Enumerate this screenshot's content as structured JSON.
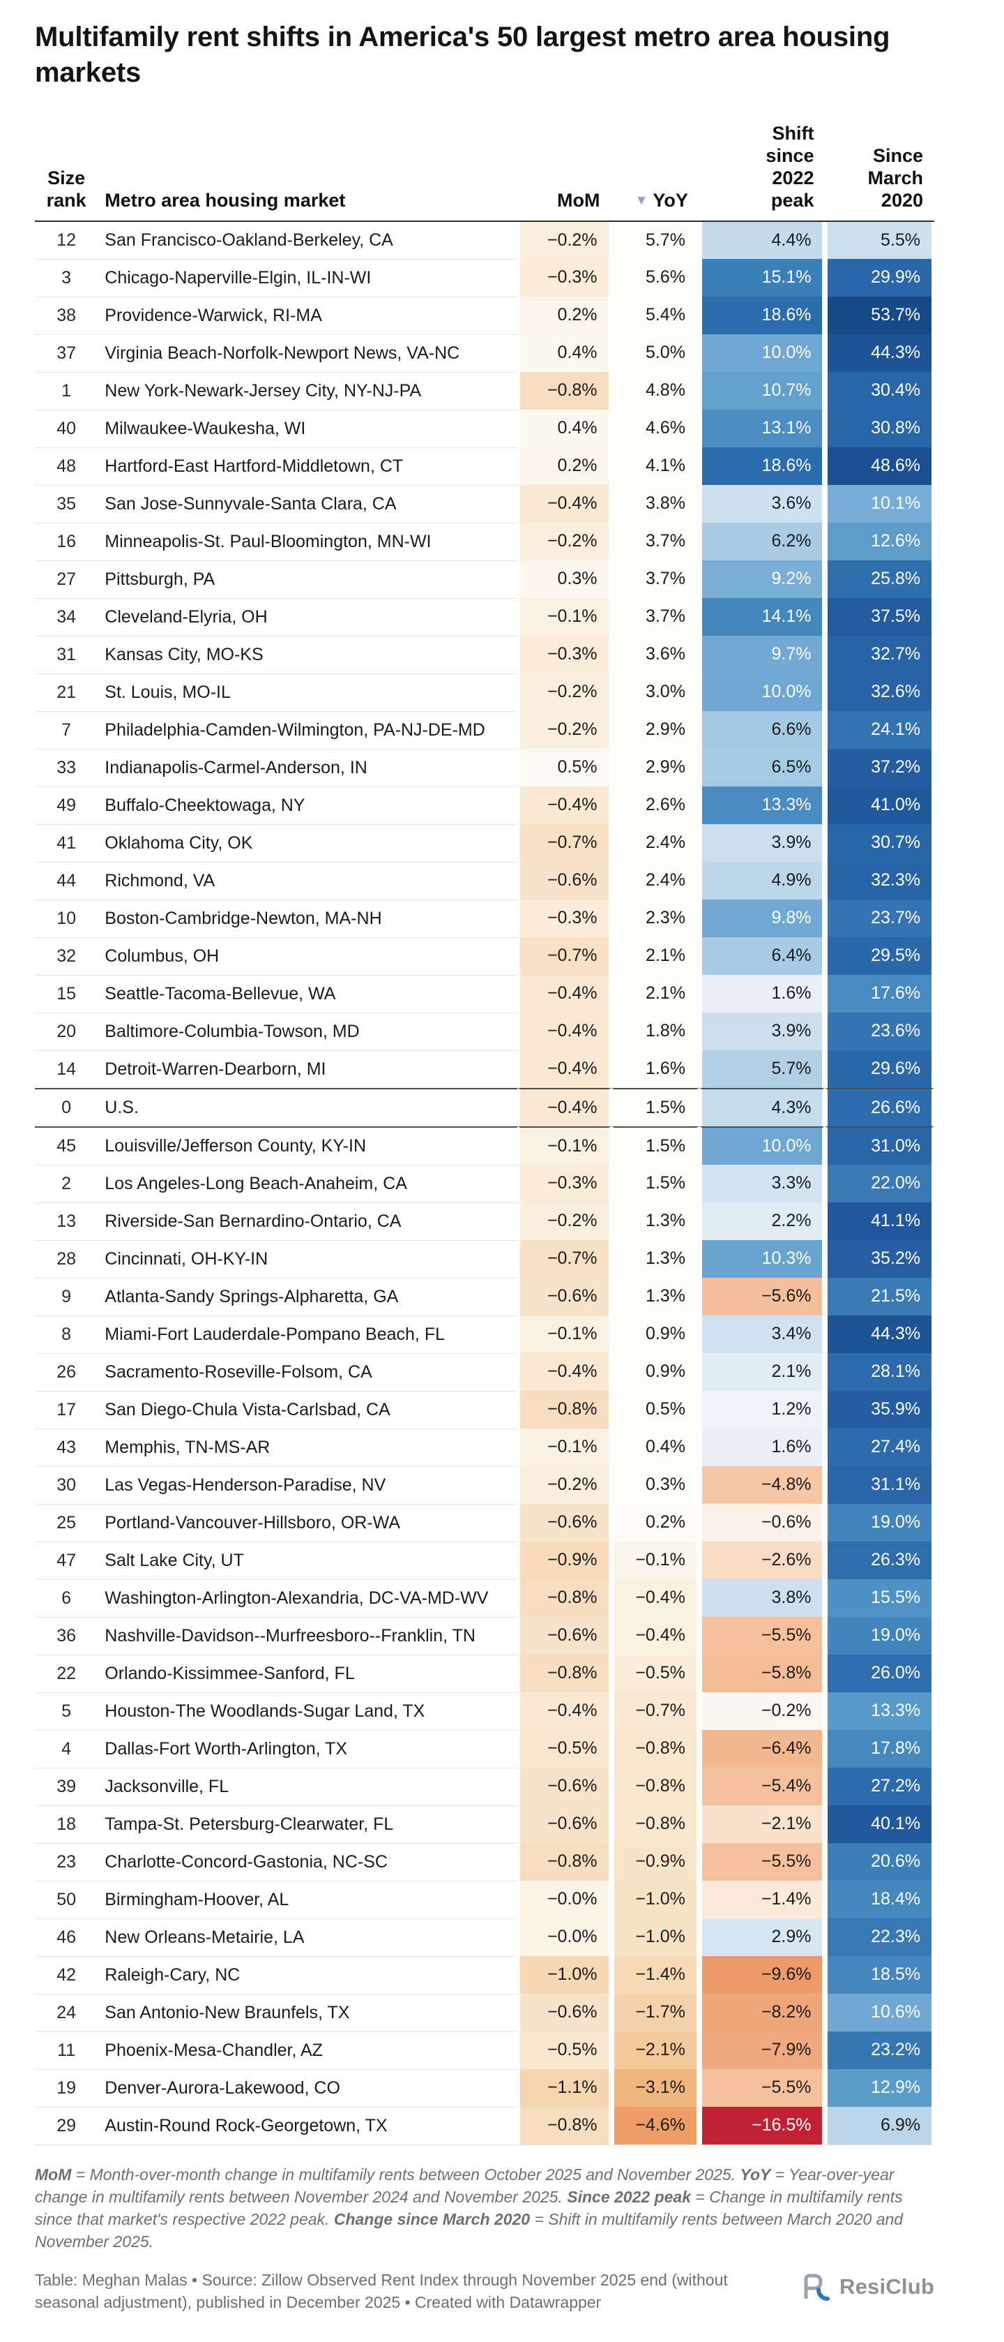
{
  "chart_data": {
    "type": "table",
    "title": "Multifamily rent shifts in America's 50 largest metro area housing markets",
    "columns": [
      "Size\nrank",
      "Metro area housing market",
      "MoM",
      "YoY",
      "Shift\nsince\n2022\npeak",
      "Since\nMarch\n2020"
    ],
    "sorted_column": "YoY",
    "sort_direction": "descending",
    "us_row_label": "U.S.",
    "rows": [
      [
        12,
        "San Francisco-Oakland-Berkeley, CA",
        -0.2,
        5.7,
        4.4,
        5.5
      ],
      [
        3,
        "Chicago-Naperville-Elgin, IL-IN-WI",
        -0.3,
        5.6,
        15.1,
        29.9
      ],
      [
        38,
        "Providence-Warwick, RI-MA",
        0.2,
        5.4,
        18.6,
        53.7
      ],
      [
        37,
        "Virginia Beach-Norfolk-Newport News, VA-NC",
        0.4,
        5.0,
        10.0,
        44.3
      ],
      [
        1,
        "New York-Newark-Jersey City, NY-NJ-PA",
        -0.8,
        4.8,
        10.7,
        30.4
      ],
      [
        40,
        "Milwaukee-Waukesha, WI",
        0.4,
        4.6,
        13.1,
        30.8
      ],
      [
        48,
        "Hartford-East Hartford-Middletown, CT",
        0.2,
        4.1,
        18.6,
        48.6
      ],
      [
        35,
        "San Jose-Sunnyvale-Santa Clara, CA",
        -0.4,
        3.8,
        3.6,
        10.1
      ],
      [
        16,
        "Minneapolis-St. Paul-Bloomington, MN-WI",
        -0.2,
        3.7,
        6.2,
        12.6
      ],
      [
        27,
        "Pittsburgh, PA",
        0.3,
        3.7,
        9.2,
        25.8
      ],
      [
        34,
        "Cleveland-Elyria, OH",
        -0.1,
        3.7,
        14.1,
        37.5
      ],
      [
        31,
        "Kansas City, MO-KS",
        -0.3,
        3.6,
        9.7,
        32.7
      ],
      [
        21,
        "St. Louis, MO-IL",
        -0.2,
        3.0,
        10.0,
        32.6
      ],
      [
        7,
        "Philadelphia-Camden-Wilmington, PA-NJ-DE-MD",
        -0.2,
        2.9,
        6.6,
        24.1
      ],
      [
        33,
        "Indianapolis-Carmel-Anderson, IN",
        0.5,
        2.9,
        6.5,
        37.2
      ],
      [
        49,
        "Buffalo-Cheektowaga, NY",
        -0.4,
        2.6,
        13.3,
        41.0
      ],
      [
        41,
        "Oklahoma City, OK",
        -0.7,
        2.4,
        3.9,
        30.7
      ],
      [
        44,
        "Richmond, VA",
        -0.6,
        2.4,
        4.9,
        32.3
      ],
      [
        10,
        "Boston-Cambridge-Newton, MA-NH",
        -0.3,
        2.3,
        9.8,
        23.7
      ],
      [
        32,
        "Columbus, OH",
        -0.7,
        2.1,
        6.4,
        29.5
      ],
      [
        15,
        "Seattle-Tacoma-Bellevue, WA",
        -0.4,
        2.1,
        1.6,
        17.6
      ],
      [
        20,
        "Baltimore-Columbia-Towson, MD",
        -0.4,
        1.8,
        3.9,
        23.6
      ],
      [
        14,
        "Detroit-Warren-Dearborn, MI",
        -0.4,
        1.6,
        5.7,
        29.6
      ],
      [
        0,
        "U.S.",
        -0.4,
        1.5,
        4.3,
        26.6
      ],
      [
        45,
        "Louisville/Jefferson County, KY-IN",
        -0.1,
        1.5,
        10.0,
        31.0
      ],
      [
        2,
        "Los Angeles-Long Beach-Anaheim, CA",
        -0.3,
        1.5,
        3.3,
        22.0
      ],
      [
        13,
        "Riverside-San Bernardino-Ontario, CA",
        -0.2,
        1.3,
        2.2,
        41.1
      ],
      [
        28,
        "Cincinnati, OH-KY-IN",
        -0.7,
        1.3,
        10.3,
        35.2
      ],
      [
        9,
        "Atlanta-Sandy Springs-Alpharetta, GA",
        -0.6,
        1.3,
        -5.6,
        21.5
      ],
      [
        8,
        "Miami-Fort Lauderdale-Pompano Beach, FL",
        -0.1,
        0.9,
        3.4,
        44.3
      ],
      [
        26,
        "Sacramento-Roseville-Folsom, CA",
        -0.4,
        0.9,
        2.1,
        28.1
      ],
      [
        17,
        "San Diego-Chula Vista-Carlsbad, CA",
        -0.8,
        0.5,
        1.2,
        35.9
      ],
      [
        43,
        "Memphis, TN-MS-AR",
        -0.1,
        0.4,
        1.6,
        27.4
      ],
      [
        30,
        "Las Vegas-Henderson-Paradise, NV",
        -0.2,
        0.3,
        -4.8,
        31.1
      ],
      [
        25,
        "Portland-Vancouver-Hillsboro, OR-WA",
        -0.6,
        0.2,
        -0.6,
        19.0
      ],
      [
        47,
        "Salt Lake City, UT",
        -0.9,
        -0.1,
        -2.6,
        26.3
      ],
      [
        6,
        "Washington-Arlington-Alexandria, DC-VA-MD-WV",
        -0.8,
        -0.4,
        3.8,
        15.5
      ],
      [
        36,
        "Nashville-Davidson--Murfreesboro--Franklin, TN",
        -0.6,
        -0.4,
        -5.5,
        19.0
      ],
      [
        22,
        "Orlando-Kissimmee-Sanford, FL",
        -0.8,
        -0.5,
        -5.8,
        26.0
      ],
      [
        5,
        "Houston-The Woodlands-Sugar Land, TX",
        -0.4,
        -0.7,
        -0.2,
        13.3
      ],
      [
        4,
        "Dallas-Fort Worth-Arlington, TX",
        -0.5,
        -0.8,
        -6.4,
        17.8
      ],
      [
        39,
        "Jacksonville, FL",
        -0.6,
        -0.8,
        -5.4,
        27.2
      ],
      [
        18,
        "Tampa-St. Petersburg-Clearwater, FL",
        -0.6,
        -0.8,
        -2.1,
        40.1
      ],
      [
        23,
        "Charlotte-Concord-Gastonia, NC-SC",
        -0.8,
        -0.9,
        -5.5,
        20.6
      ],
      [
        50,
        "Birmingham-Hoover, AL",
        -0.0,
        -1.0,
        -1.4,
        18.4
      ],
      [
        46,
        "New Orleans-Metairie, LA",
        -0.0,
        -1.0,
        2.9,
        22.3
      ],
      [
        42,
        "Raleigh-Cary, NC",
        -1.0,
        -1.4,
        -9.6,
        18.5
      ],
      [
        24,
        "San Antonio-New Braunfels, TX",
        -0.6,
        -1.7,
        -8.2,
        10.6
      ],
      [
        11,
        "Phoenix-Mesa-Chandler, AZ",
        -0.5,
        -2.1,
        -7.9,
        23.2
      ],
      [
        19,
        "Denver-Aurora-Lakewood, CO",
        -1.1,
        -3.1,
        -5.5,
        12.9
      ],
      [
        29,
        "Austin-Round Rock-Georgetown, TX",
        -0.8,
        -4.6,
        -16.5,
        6.9
      ]
    ],
    "scales": {
      "mom": [
        [
          -1.1,
          "#f6d5b1"
        ],
        [
          0,
          "#fbf4e7"
        ],
        [
          0.5,
          "#fcfaf4"
        ]
      ],
      "yoy": [
        [
          -4.6,
          "#ee9d66"
        ],
        [
          -3.1,
          "#f1b67f"
        ],
        [
          -2.1,
          "#f4ca9b"
        ],
        [
          -1.7,
          "#f5d2a9"
        ],
        [
          -1.0,
          "#f8e2c4"
        ],
        [
          -0.5,
          "#faeedb"
        ],
        [
          -0.1,
          "#fbf6ec"
        ],
        [
          0,
          "#fcf9f2"
        ],
        [
          0.3,
          "#fdfdfb"
        ],
        [
          5.7,
          "#fdfdfc"
        ]
      ],
      "shift": [
        [
          -16.5,
          "#c22033"
        ],
        [
          -9.6,
          "#ec9a68"
        ],
        [
          -8.2,
          "#efa679"
        ],
        [
          -6.5,
          "#f3b78e"
        ],
        [
          -5.8,
          "#f4bd97"
        ],
        [
          -4.8,
          "#f6c7a5"
        ],
        [
          -2.6,
          "#f9dcc5"
        ],
        [
          -1.4,
          "#fbead9"
        ],
        [
          -0.6,
          "#fbf2e9"
        ],
        [
          -0.2,
          "#fbf7f2"
        ],
        [
          0,
          "#fafaf8"
        ],
        [
          1.2,
          "#edf3f7"
        ],
        [
          2.2,
          "#e0ecf4"
        ],
        [
          3.4,
          "#d1e3f0"
        ],
        [
          4.4,
          "#c4dbed"
        ],
        [
          4.9,
          "#bdd7ea"
        ],
        [
          6.2,
          "#a9cce4"
        ],
        [
          6.6,
          "#a4c9e3"
        ],
        [
          9.2,
          "#7aaed5"
        ],
        [
          10.0,
          "#6ea7d1"
        ],
        [
          10.7,
          "#62a0cd"
        ],
        [
          13.1,
          "#4c8dc2"
        ],
        [
          14.1,
          "#4387bd"
        ],
        [
          15.1,
          "#3a80b9"
        ],
        [
          18.6,
          "#2a6cac"
        ]
      ],
      "since": [
        [
          5.5,
          "#cde0ef"
        ],
        [
          6.9,
          "#bbd6ea"
        ],
        [
          9.0,
          "#8cbadd"
        ],
        [
          10.1,
          "#77add6"
        ],
        [
          10.6,
          "#70a8d3"
        ],
        [
          12.6,
          "#5d9bcb"
        ],
        [
          13.3,
          "#589ac9"
        ],
        [
          15.5,
          "#5092c5"
        ],
        [
          17.6,
          "#478abf"
        ],
        [
          19.0,
          "#4284bc"
        ],
        [
          20.6,
          "#3d7eb8"
        ],
        [
          22.3,
          "#3878b4"
        ],
        [
          24.1,
          "#3373b1"
        ],
        [
          26.6,
          "#2e6dad"
        ],
        [
          29.9,
          "#2a67a9"
        ],
        [
          32.7,
          "#2763a5"
        ],
        [
          35.9,
          "#245ea1"
        ],
        [
          41.1,
          "#1f589b"
        ],
        [
          44.3,
          "#1d5496"
        ],
        [
          48.6,
          "#1a5092"
        ],
        [
          53.7,
          "#174a8b"
        ]
      ]
    },
    "value_suffix": "%"
  },
  "icons": {
    "sort_desc": "▼"
  },
  "footnote": {
    "segments": [
      {
        "text": "MoM",
        "bold": true
      },
      {
        "text": " = Month-over-month change in multifamily rents between October 2025 and November 2025. ",
        "bold": false
      },
      {
        "text": "YoY",
        "bold": true
      },
      {
        "text": " = Year-over-year change in multifamily rents between November 2024 and November 2025. ",
        "bold": false
      },
      {
        "text": "Since 2022 peak",
        "bold": true
      },
      {
        "text": " = Change in multifamily rents since that market's respective 2022 peak. ",
        "bold": false
      },
      {
        "text": "Change since March 2020",
        "bold": true
      },
      {
        "text": " = Shift in multifamily rents between March 2020 and November 2025.",
        "bold": false
      }
    ]
  },
  "attribution": "Table: Meghan Malas • Source: Zillow Observed Rent Index through November 2025 end (without seasonal adjustment), published in December 2025 • Created with Datawrapper",
  "logo": {
    "text": "ResiClub",
    "mark_gray": "#99a3ac",
    "mark_blue": "#2f77c2"
  }
}
